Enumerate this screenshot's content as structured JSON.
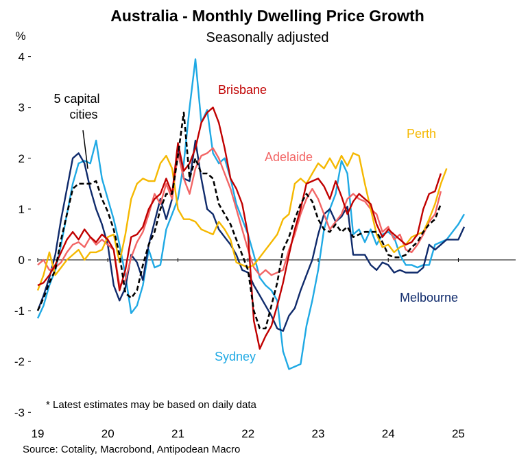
{
  "chart_data": {
    "type": "line",
    "title": "Australia - Monthly Dwelling Price Growth",
    "subtitle": "Seasonally adjusted",
    "ylabel": "%",
    "xlabel": "",
    "ylim": [
      -3,
      4
    ],
    "yticks": [
      "4",
      "3",
      "2",
      "1",
      "0",
      "-1",
      "-2",
      "-3"
    ],
    "xticks": [
      {
        "label": "19",
        "year": 2019
      },
      {
        "label": "20",
        "year": 2020
      },
      {
        "label": "21",
        "year": 2021
      },
      {
        "label": "22",
        "year": 2022
      },
      {
        "label": "23",
        "year": 2023
      },
      {
        "label": "24",
        "year": 2024
      },
      {
        "label": "25",
        "year": 2025
      }
    ],
    "start": "2019-01",
    "note": "* Latest estimates may be based on daily data",
    "source": "Source: Cotality, Macrobond, Antipodean Macro",
    "series": [
      {
        "name": "Sydney",
        "label": "Sydney",
        "color": "#1FA9E4",
        "values": [
          -1.15,
          -0.9,
          -0.5,
          -0.2,
          0.3,
          0.9,
          1.5,
          1.9,
          1.95,
          1.9,
          2.35,
          1.6,
          1.2,
          0.8,
          0.3,
          -0.3,
          -1.05,
          -0.9,
          -0.5,
          0.2,
          -0.15,
          -0.1,
          0.6,
          0.9,
          1.2,
          1.9,
          3.0,
          3.95,
          2.7,
          2.95,
          2.1,
          1.9,
          2.0,
          1.6,
          1.1,
          0.8,
          0.5,
          0.1,
          -0.35,
          -0.5,
          -0.6,
          -0.8,
          -1.8,
          -2.15,
          -2.1,
          -2.05,
          -1.3,
          -0.8,
          -0.2,
          0.6,
          1.0,
          1.3,
          1.95,
          1.7,
          0.5,
          0.6,
          0.35,
          0.6,
          0.3,
          0.5,
          0.55,
          0.45,
          0.1,
          -0.1,
          -0.1,
          -0.15,
          -0.1,
          -0.1,
          0.3,
          0.35,
          0.4,
          0.55,
          0.7,
          0.9
        ]
      },
      {
        "name": "Melbourne",
        "label": "Melbourne",
        "color": "#0F2A6B",
        "values": [
          -1.0,
          -0.7,
          -0.35,
          0.1,
          0.8,
          1.4,
          2.0,
          2.1,
          1.9,
          1.4,
          1.0,
          0.7,
          0.3,
          -0.5,
          -0.8,
          -0.55,
          0.1,
          -0.05,
          -0.4,
          0.3,
          0.75,
          1.2,
          0.8,
          1.2,
          2.2,
          1.6,
          1.55,
          2.35,
          1.6,
          1.0,
          0.9,
          0.6,
          0.45,
          0.3,
          0.1,
          -0.2,
          -0.25,
          -0.5,
          -0.7,
          -0.9,
          -1.1,
          -1.35,
          -1.4,
          -1.1,
          -0.95,
          -0.6,
          -0.3,
          0.0,
          0.5,
          0.9,
          1.0,
          0.75,
          0.85,
          1.05,
          0.1,
          0.1,
          0.1,
          -0.1,
          -0.2,
          -0.05,
          -0.1,
          -0.25,
          -0.2,
          -0.25,
          -0.25,
          -0.25,
          -0.15,
          0.3,
          0.2,
          0.3,
          0.4,
          0.4,
          0.4,
          0.65
        ]
      },
      {
        "name": "Brisbane",
        "label": "Brisbane",
        "color": "#C00000",
        "values": [
          -0.5,
          -0.45,
          -0.3,
          -0.1,
          0.15,
          0.4,
          0.55,
          0.4,
          0.6,
          0.45,
          0.35,
          0.5,
          0.4,
          0.2,
          -0.6,
          -0.2,
          0.45,
          0.5,
          0.65,
          1.0,
          1.2,
          1.3,
          1.6,
          1.3,
          2.3,
          1.75,
          1.9,
          2.2,
          2.7,
          2.9,
          3.0,
          2.7,
          2.2,
          1.6,
          1.4,
          1.1,
          0.5,
          -1.2,
          -1.75,
          -1.5,
          -1.3,
          -0.9,
          -0.45,
          0.1,
          0.6,
          1.0,
          1.5,
          1.55,
          1.6,
          1.45,
          1.2,
          1.55,
          1.25,
          0.9,
          1.15,
          1.3,
          1.2,
          1.1,
          0.7,
          0.45,
          0.6,
          0.5,
          0.4,
          0.3,
          0.35,
          0.5,
          1.0,
          1.3,
          1.35,
          1.7
        ]
      },
      {
        "name": "Adelaide",
        "label": "Adelaide",
        "color": "#F26565",
        "values": [
          -0.1,
          0.0,
          -0.2,
          -0.15,
          -0.05,
          0.15,
          0.3,
          0.35,
          0.25,
          0.45,
          0.3,
          0.4,
          0.3,
          0.2,
          -0.5,
          -0.4,
          0.05,
          0.35,
          0.55,
          0.9,
          1.3,
          1.1,
          1.5,
          1.2,
          2.1,
          1.6,
          1.3,
          1.8,
          2.05,
          2.1,
          2.2,
          2.0,
          1.7,
          1.4,
          1.0,
          0.6,
          0.2,
          -0.15,
          -0.3,
          -0.2,
          -0.3,
          -0.25,
          -0.2,
          0.2,
          0.5,
          0.9,
          1.2,
          1.4,
          1.2,
          0.9,
          0.6,
          0.75,
          0.9,
          1.2,
          1.3,
          1.2,
          1.15,
          1.0,
          0.9,
          0.55,
          0.65,
          0.4,
          0.5,
          0.2,
          0.15,
          0.3,
          0.5,
          0.75,
          0.9,
          1.35
        ]
      },
      {
        "name": "Perth",
        "label": "Perth",
        "color": "#F5B800",
        "values": [
          -0.6,
          -0.3,
          0.15,
          -0.3,
          -0.15,
          0.0,
          0.1,
          0.2,
          0.0,
          0.15,
          0.15,
          0.2,
          0.45,
          0.5,
          -0.05,
          0.5,
          1.2,
          1.5,
          1.6,
          1.55,
          1.55,
          1.9,
          2.05,
          1.8,
          1.0,
          0.8,
          0.8,
          0.75,
          0.6,
          0.55,
          0.5,
          0.75,
          0.6,
          0.4,
          -0.05,
          -0.1,
          -0.15,
          -0.1,
          0.05,
          0.2,
          0.35,
          0.5,
          0.8,
          0.9,
          1.5,
          1.6,
          1.5,
          1.7,
          1.9,
          1.8,
          2.0,
          1.8,
          2.05,
          1.85,
          2.1,
          2.05,
          1.5,
          1.0,
          0.5,
          0.25,
          0.3,
          0.15,
          0.25,
          0.3,
          0.45,
          0.5,
          0.55,
          0.8,
          1.1,
          1.5,
          1.8
        ]
      },
      {
        "name": "5 capital cities",
        "label": "5 capital cities",
        "color": "#000000",
        "values": [
          -1.0,
          -0.75,
          -0.45,
          -0.2,
          0.4,
          0.9,
          1.4,
          1.5,
          1.5,
          1.5,
          1.55,
          1.2,
          0.95,
          0.6,
          0.1,
          -0.65,
          -0.75,
          -0.6,
          -0.1,
          0.3,
          0.55,
          1.0,
          1.3,
          1.3,
          2.05,
          2.9,
          1.6,
          2.0,
          1.7,
          1.7,
          1.6,
          1.1,
          0.9,
          0.7,
          0.4,
          0.1,
          -0.2,
          -1.0,
          -1.35,
          -1.35,
          -0.9,
          -0.45,
          0.2,
          0.45,
          0.8,
          1.1,
          1.3,
          1.15,
          0.8,
          0.6,
          0.55,
          0.7,
          0.55,
          0.65,
          0.45,
          0.5,
          0.55,
          0.55,
          0.55,
          0.35,
          0.1,
          0.05,
          0.05,
          0.1,
          0.25,
          0.35,
          0.55,
          0.7,
          0.8,
          1.1
        ]
      }
    ]
  }
}
